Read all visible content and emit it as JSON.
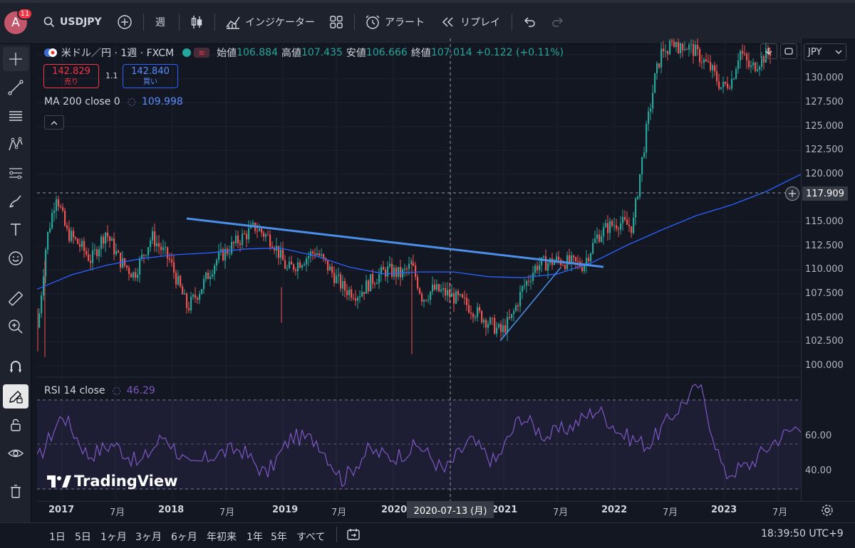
{
  "topbar": {
    "avatar_letter": "A",
    "notification_count": "11",
    "symbol": "USDJPY",
    "interval": "週",
    "indicators_label": "インジケーター",
    "alert_label": "アラート",
    "replay_label": "リプレイ"
  },
  "legend": {
    "title": "米ドル／円 · 1週 · FXCM",
    "open_label": "始値",
    "open_value": "106.884",
    "high_label": "高値",
    "high_value": "107.435",
    "low_label": "安値",
    "low_value": "106.666",
    "close_label": "終値",
    "close_value": "107.014",
    "change": "+0.122 (+0.11%)",
    "sell_price": "142.829",
    "sell_label": "売り",
    "spread": "1.1",
    "buy_price": "142.840",
    "buy_label": "買い",
    "ma_label": "MA 200 close 0",
    "ma_value": "109.998",
    "rsi_label": "RSI 14 close",
    "rsi_value": "46.29"
  },
  "currency_selector": "JPY",
  "price_axis": {
    "labels": [
      "130.000",
      "127.500",
      "125.000",
      "122.500",
      "120.000",
      "115.000",
      "112.500",
      "110.000",
      "107.500",
      "105.000",
      "102.500",
      "100.000"
    ],
    "crosshair_price": "117.909"
  },
  "rsi_axis": {
    "labels": [
      "60.00",
      "40.00"
    ]
  },
  "time_axis": {
    "labels": [
      {
        "text": "2017",
        "bold": true
      },
      {
        "text": "7月",
        "bold": false
      },
      {
        "text": "2018",
        "bold": true
      },
      {
        "text": "7月",
        "bold": false
      },
      {
        "text": "2019",
        "bold": true
      },
      {
        "text": "7月",
        "bold": false
      },
      {
        "text": "2020",
        "bold": true
      },
      {
        "text": "2021",
        "bold": true
      },
      {
        "text": "7月",
        "bold": false
      },
      {
        "text": "2022",
        "bold": true
      },
      {
        "text": "7月",
        "bold": false
      },
      {
        "text": "2023",
        "bold": true
      },
      {
        "text": "7月",
        "bold": false
      }
    ],
    "crosshair_date": "2020-07-13 (月)"
  },
  "watermark": "TradingView",
  "timeframes": [
    "1日",
    "5日",
    "1ヶ月",
    "3ヶ月",
    "6ヶ月",
    "年初来",
    "1年",
    "5年",
    "すべて"
  ],
  "clock": "18:39:50 UTC+9",
  "colors": {
    "up": "#26a69a",
    "down": "#ef5350",
    "ma": "#2962ff",
    "rsi": "#7e57c2",
    "trendline": "#4b8fe8"
  },
  "chart_data": {
    "type": "candlestick",
    "price_range": [
      98.8,
      134.2
    ],
    "rsi_range": [
      23,
      90
    ],
    "ma_values": [
      108,
      109.5,
      110.5,
      111.2,
      111.6,
      111.8,
      112.2,
      112.3,
      111.5,
      110.3,
      109.6,
      109.8,
      109.8,
      109.3,
      109.2,
      109.6,
      110.8,
      112.6,
      114.2,
      115.7,
      116.8,
      118.2,
      120
    ],
    "rsi_values": [
      46,
      73,
      49,
      56,
      44,
      61,
      42,
      50,
      53,
      38,
      60,
      58,
      35,
      52,
      48,
      55,
      40,
      58,
      45,
      72,
      60,
      66,
      76,
      61,
      55,
      73,
      90,
      38,
      44,
      58,
      67
    ],
    "rsi_levels": [
      70,
      50,
      30
    ]
  }
}
